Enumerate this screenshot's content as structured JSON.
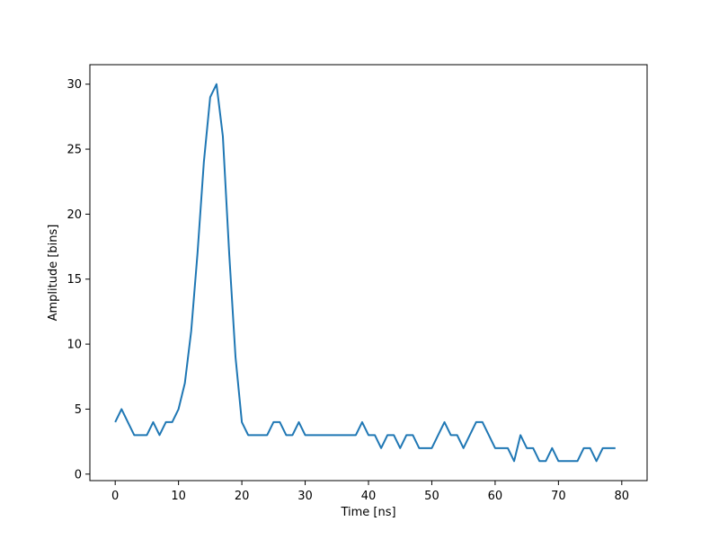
{
  "chart_data": {
    "type": "line",
    "title": "",
    "xlabel": "Time [ns]",
    "ylabel": "Amplitude [bins]",
    "xlim": [
      -4,
      84
    ],
    "ylim": [
      -0.5,
      31.5
    ],
    "xticks": [
      0,
      10,
      20,
      30,
      40,
      50,
      60,
      70,
      80
    ],
    "yticks": [
      0,
      5,
      10,
      15,
      20,
      25,
      30
    ],
    "xtick_labels": [
      "0",
      "10",
      "20",
      "30",
      "40",
      "50",
      "60",
      "70",
      "80"
    ],
    "ytick_labels": [
      "0",
      "5",
      "10",
      "15",
      "20",
      "25",
      "30"
    ],
    "grid": false,
    "legend": "none",
    "line_color": "#1f77b4",
    "series": [
      {
        "x": [
          0,
          1,
          2,
          3,
          4,
          5,
          6,
          7,
          8,
          9,
          10,
          11,
          12,
          13,
          14,
          15,
          16,
          17,
          18,
          19,
          20,
          21,
          22,
          23,
          24,
          25,
          26,
          27,
          28,
          29,
          30,
          31,
          32,
          33,
          34,
          35,
          36,
          37,
          38,
          39,
          40,
          41,
          42,
          43,
          44,
          45,
          46,
          47,
          48,
          49,
          50,
          51,
          52,
          53,
          54,
          55,
          56,
          57,
          58,
          59,
          60,
          61,
          62,
          63,
          64,
          65,
          66,
          67,
          68,
          69,
          70,
          71,
          72,
          73,
          74,
          75,
          76,
          77,
          78,
          79
        ],
        "values": [
          4,
          5,
          4,
          3,
          3,
          3,
          4,
          3,
          4,
          4,
          5,
          7,
          11,
          17,
          24,
          29,
          30,
          26,
          17,
          9,
          4,
          3,
          3,
          3,
          3,
          4,
          4,
          3,
          3,
          4,
          3,
          3,
          3,
          3,
          3,
          3,
          3,
          3,
          3,
          4,
          3,
          3,
          2,
          3,
          3,
          2,
          3,
          3,
          2,
          2,
          2,
          3,
          4,
          3,
          3,
          2,
          3,
          4,
          4,
          3,
          2,
          2,
          2,
          1,
          3,
          2,
          2,
          1,
          1,
          2,
          1,
          1,
          1,
          1,
          2,
          2,
          1,
          2,
          2,
          2
        ]
      }
    ]
  }
}
